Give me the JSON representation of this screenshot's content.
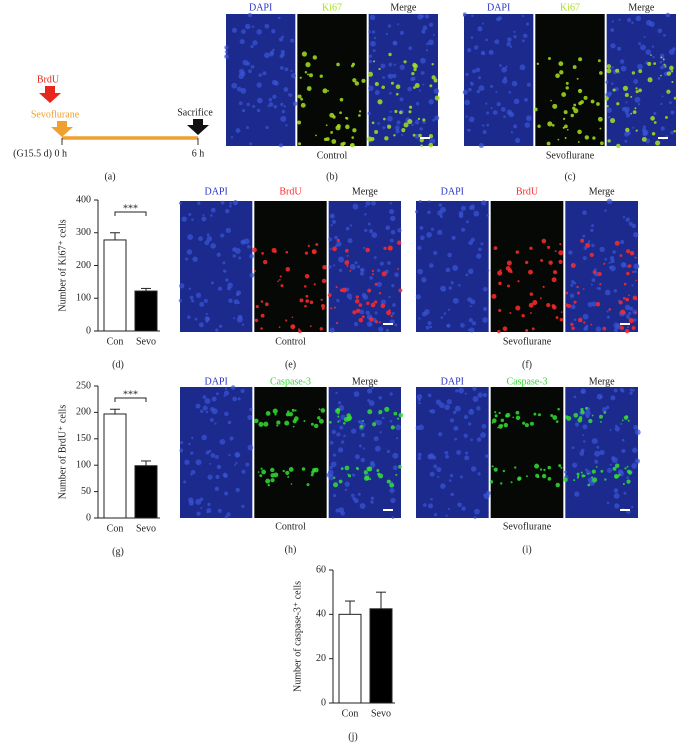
{
  "panels": {
    "a": {
      "label": "(a)",
      "brdu": "BrdU",
      "sevoflurane": "Sevoflurane",
      "sacrifice": "Sacrifice",
      "start": "(G15.5 d) 0 h",
      "end": "6 h"
    },
    "b": {
      "label": "(b)",
      "headers": [
        "DAPI",
        "Ki67",
        "Merge"
      ],
      "caption": "Control"
    },
    "c": {
      "label": "(c)",
      "headers": [
        "DAPI",
        "Ki67",
        "Merge"
      ],
      "caption": "Sevoflurane"
    },
    "e": {
      "label": "(e)",
      "headers": [
        "DAPI",
        "BrdU",
        "Merge"
      ],
      "caption": "Control"
    },
    "f": {
      "label": "(f)",
      "headers": [
        "DAPI",
        "BrdU",
        "Merge"
      ],
      "caption": "Sevoflurane"
    },
    "h": {
      "label": "(h)",
      "headers": [
        "DAPI",
        "Caspase-3",
        "Merge"
      ],
      "caption": "Control"
    },
    "i": {
      "label": "(i)",
      "headers": [
        "DAPI",
        "Caspase-3",
        "Merge"
      ],
      "caption": "Sevoflurane"
    }
  },
  "chart_data": [
    {
      "type": "bar",
      "panel_label": "(d)",
      "ylabel": "Number of Ki67⁺ cells",
      "categories": [
        "Con",
        "Sevo"
      ],
      "values": [
        278,
        122
      ],
      "errors": [
        22,
        8
      ],
      "colors": [
        "#ffffff",
        "#000000"
      ],
      "ylim": [
        0,
        400
      ],
      "yticks": [
        0,
        100,
        200,
        300,
        400
      ],
      "significance": "***"
    },
    {
      "type": "bar",
      "panel_label": "(g)",
      "ylabel": "Number of BrdU⁺ cells",
      "categories": [
        "Con",
        "Sevo"
      ],
      "values": [
        197,
        99
      ],
      "errors": [
        9,
        9
      ],
      "colors": [
        "#ffffff",
        "#000000"
      ],
      "ylim": [
        0,
        250
      ],
      "yticks": [
        0,
        50,
        100,
        150,
        200,
        250
      ],
      "significance": "***"
    },
    {
      "type": "bar",
      "panel_label": "(j)",
      "ylabel": "Number of caspase-3⁺ cells",
      "categories": [
        "Con",
        "Sevo"
      ],
      "values": [
        40,
        42.5
      ],
      "errors": [
        6,
        7.5
      ],
      "colors": [
        "#ffffff",
        "#000000"
      ],
      "ylim": [
        0,
        60
      ],
      "yticks": [
        0,
        20,
        40,
        60
      ]
    }
  ]
}
